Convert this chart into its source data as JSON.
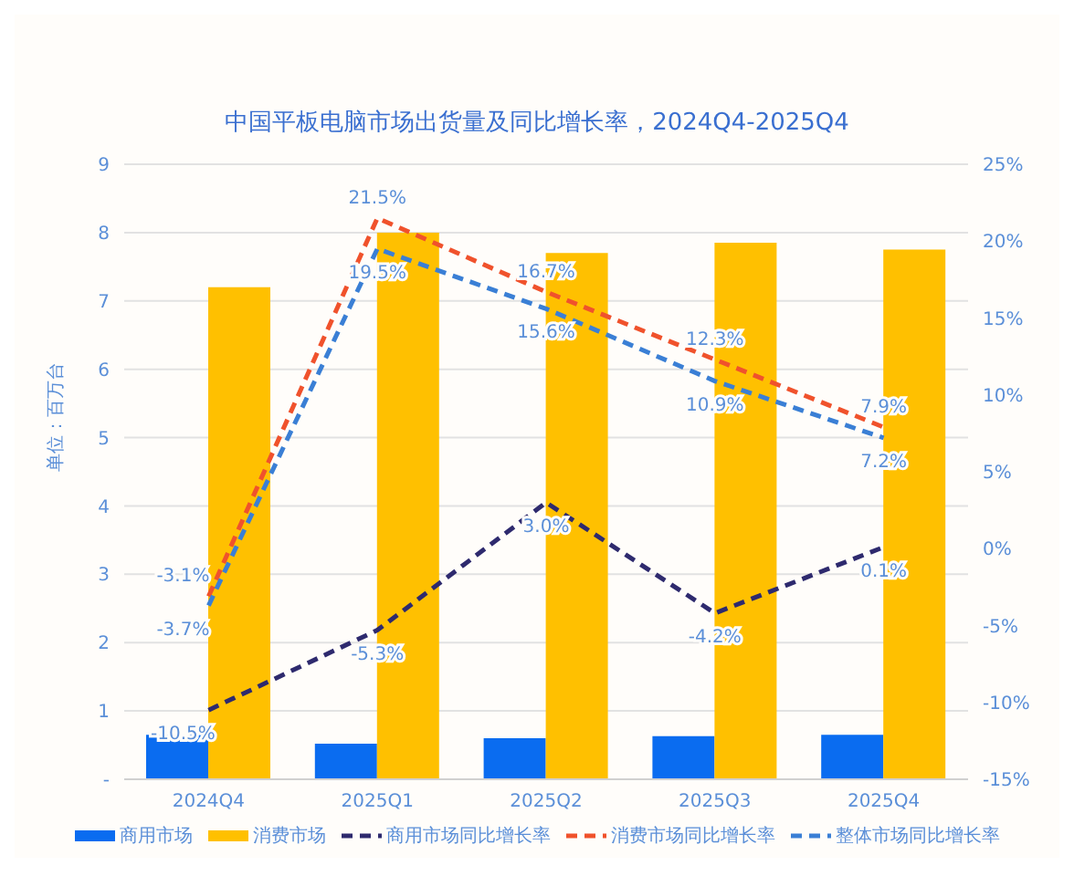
{
  "chart_data": {
    "type": "bar",
    "title": "中国平板电脑市场出货量及同比增长率，2024Q4-2025Q4",
    "ylabel": "单位：百万台",
    "categories": [
      "2024Q4",
      "2025Q1",
      "2025Q2",
      "2025Q3",
      "2025Q4"
    ],
    "series": [
      {
        "name": "商用市场",
        "color": "#0a6cf0",
        "values": [
          0.65,
          0.52,
          0.6,
          0.63,
          0.65
        ]
      },
      {
        "name": "消费市场",
        "color": "#ffc000",
        "values": [
          7.2,
          8.0,
          7.7,
          7.85,
          7.75
        ]
      },
      {
        "name": "商用市场同比增长率",
        "type": "line",
        "axis": "y2",
        "line_style": "dashed",
        "color": "#2e2a6e",
        "values": [
          -10.5,
          -5.3,
          3.0,
          -4.2,
          0.1
        ],
        "value_labels": [
          "-10.5%",
          "-5.3%",
          "3.0%",
          "-4.2%",
          "0.1%"
        ]
      },
      {
        "name": "消费市场同比增长率",
        "type": "line",
        "axis": "y2",
        "line_style": "dashed",
        "color": "#f0522c",
        "values": [
          -3.1,
          21.5,
          16.7,
          12.3,
          7.9
        ],
        "value_labels": [
          "-3.1%",
          "21.5%",
          "16.7%",
          "12.3%",
          "7.9%"
        ]
      },
      {
        "name": "整体市场同比增长率",
        "type": "line",
        "axis": "y2",
        "line_style": "dashed",
        "color": "#3a7fd5",
        "values": [
          -3.7,
          19.5,
          15.6,
          10.9,
          7.2
        ],
        "value_labels": [
          "-3.7%",
          "19.5%",
          "15.6%",
          "10.9%",
          "7.2%"
        ]
      }
    ],
    "ylim": [
      0,
      9
    ],
    "yticks": [
      {
        "value": 0,
        "label": "-"
      },
      1,
      2,
      3,
      4,
      5,
      6,
      7,
      8,
      9
    ],
    "y2lim": [
      -15,
      25
    ],
    "y2ticks": [
      {
        "value": -15,
        "label": "-15%"
      },
      {
        "value": -10,
        "label": "-10%"
      },
      {
        "value": -5,
        "label": "-5%"
      },
      {
        "value": 0,
        "label": "0%"
      },
      {
        "value": 5,
        "label": "5%"
      },
      {
        "value": 10,
        "label": "10%"
      },
      {
        "value": 15,
        "label": "15%"
      },
      {
        "value": 20,
        "label": "20%"
      },
      {
        "value": 25,
        "label": "25%"
      }
    ],
    "grid": "y",
    "legend": "bottom",
    "marker": "none"
  }
}
